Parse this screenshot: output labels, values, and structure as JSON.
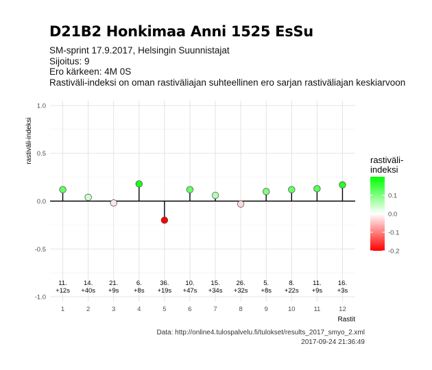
{
  "header": {
    "title": "D21B2 Honkimaa Anni 1525 EsSu",
    "lines": [
      "SM-sprint 17.9.2017, Helsingin Suunnistajat",
      "Sijoitus: 9",
      "Ero kärkeen: 4M 0S",
      "Rastiväli-indeksi on oman rastiväliajan suhteellinen ero sarjan rastiväliajan keskiarvoon"
    ]
  },
  "caption": {
    "source": "Data: http://online4.tulospalvelu.fi/tulokset/results_2017_smyo_2.xml",
    "timestamp": "2017-09-24 21:36:49"
  },
  "chart_data": {
    "type": "scatter",
    "style": "lollipop",
    "xlabel": "Rastit",
    "ylabel": "rastiväli-indeksi",
    "x": [
      1,
      2,
      3,
      4,
      5,
      6,
      7,
      8,
      9,
      10,
      11,
      12
    ],
    "x_ticks": [
      "1",
      "2",
      "3",
      "4",
      "5",
      "6",
      "7",
      "8",
      "9",
      "10",
      "11",
      "12"
    ],
    "values": [
      0.12,
      0.04,
      -0.02,
      0.18,
      -0.2,
      0.12,
      0.06,
      -0.03,
      0.1,
      0.12,
      0.13,
      0.17
    ],
    "point_labels": [
      [
        "11.",
        "+12s"
      ],
      [
        "14.",
        "+40s"
      ],
      [
        "21.",
        "+9s"
      ],
      [
        "6.",
        "+8s"
      ],
      [
        "36.",
        "+19s"
      ],
      [
        "10.",
        "+47s"
      ],
      [
        "15.",
        "+34s"
      ],
      [
        "26.",
        "+32s"
      ],
      [
        "5.",
        "+8s"
      ],
      [
        "8.",
        "+22s"
      ],
      [
        "11.",
        "+9s"
      ],
      [
        "16.",
        "+3s"
      ]
    ],
    "ylim": [
      -1.05,
      1.05
    ],
    "y_ticks": [
      -1.0,
      -0.5,
      0.0,
      0.5,
      1.0
    ],
    "y_tick_labels": [
      "-1.0",
      "-0.5",
      "0.0",
      "0.5",
      "1.0"
    ],
    "grid": true,
    "legend": {
      "title_lines": [
        "rastiväli-",
        "indeksi"
      ],
      "placement": "right",
      "ticks": [
        "0.1",
        "0.0",
        "-0.1",
        "-0.2"
      ],
      "tick_values": [
        0.1,
        0.0,
        -0.1,
        -0.2
      ],
      "range": [
        -0.2,
        0.2
      ],
      "colors": {
        "low": "#ff0000",
        "mid": "#ffffff",
        "high": "#00ff00"
      }
    }
  }
}
